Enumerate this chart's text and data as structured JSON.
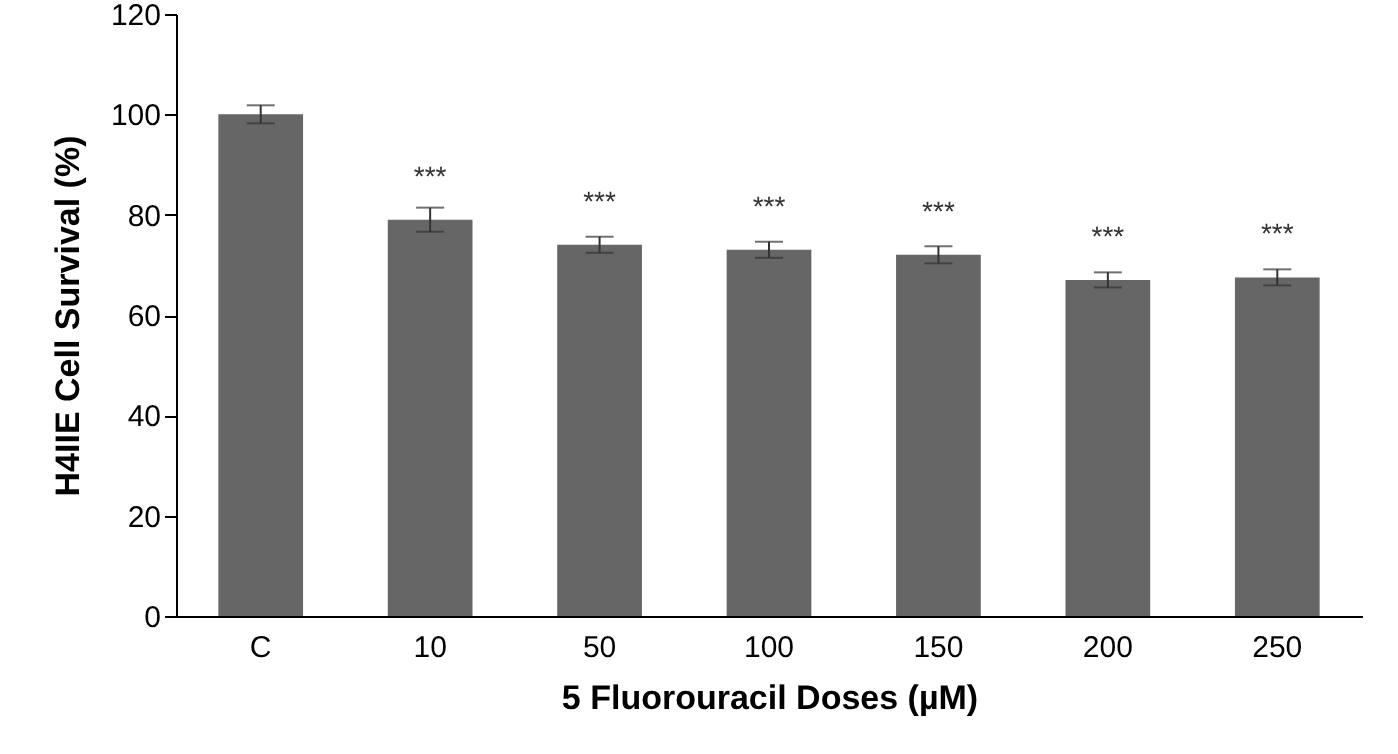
{
  "chart_data": {
    "type": "bar",
    "xlabel": "5 Fluorouracil Doses (µM)",
    "ylabel": "H4IIE Cell Survival (%)",
    "categories": [
      "C",
      "10",
      "50",
      "100",
      "150",
      "200",
      "250"
    ],
    "values": [
      100,
      79,
      74,
      73,
      72,
      67,
      67.5
    ],
    "errors": [
      1.8,
      2.4,
      1.6,
      1.6,
      1.7,
      1.5,
      1.6
    ],
    "color": "#666666",
    "ylim": [
      0,
      120
    ],
    "yticks": [
      0,
      20,
      40,
      60,
      80,
      100,
      120
    ],
    "grid": false,
    "annotations": [
      {
        "text": "***",
        "x": "10",
        "y": 79
      },
      {
        "text": "***",
        "x": "50",
        "y": 74
      },
      {
        "text": "***",
        "x": "100",
        "y": 73
      },
      {
        "text": "***",
        "x": "150",
        "y": 72
      },
      {
        "text": "***",
        "x": "200",
        "y": 67
      },
      {
        "text": "***",
        "x": "250",
        "y": 67.5
      }
    ]
  }
}
